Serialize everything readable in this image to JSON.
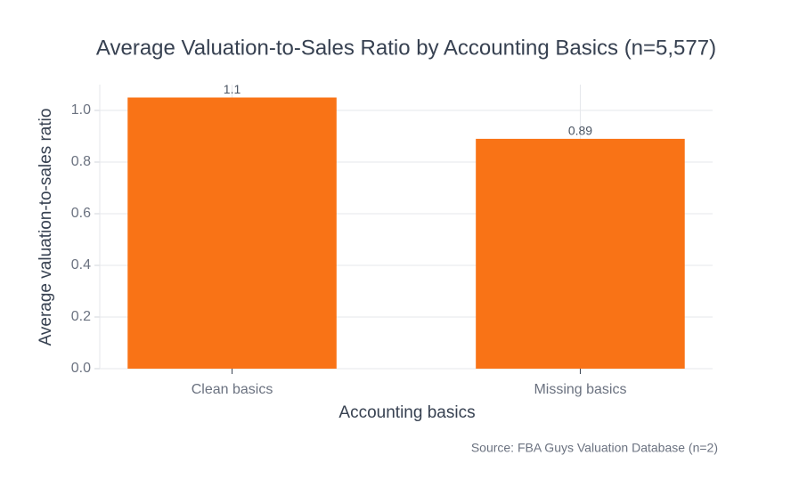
{
  "chart_data": {
    "type": "bar",
    "title": "Average Valuation-to-Sales Ratio by Accounting Basics (n=5,577)",
    "x_label": "Accounting basics",
    "y_label": "Average valuation-to-sales ratio",
    "source": "Source: FBA Guys Valuation Database (n=2)",
    "categories": [
      "Clean basics",
      "Missing basics"
    ],
    "values": [
      1.05,
      0.89
    ],
    "value_labels": [
      "1.1",
      "0.89"
    ],
    "color": "#f97316",
    "ylim": [
      0,
      1.1
    ],
    "yticks": [
      {
        "value": 0,
        "label": "0.0"
      },
      0.2,
      0.4,
      0.6,
      0.8,
      {
        "value": 1,
        "label": "1.0"
      }
    ],
    "grid": true
  }
}
